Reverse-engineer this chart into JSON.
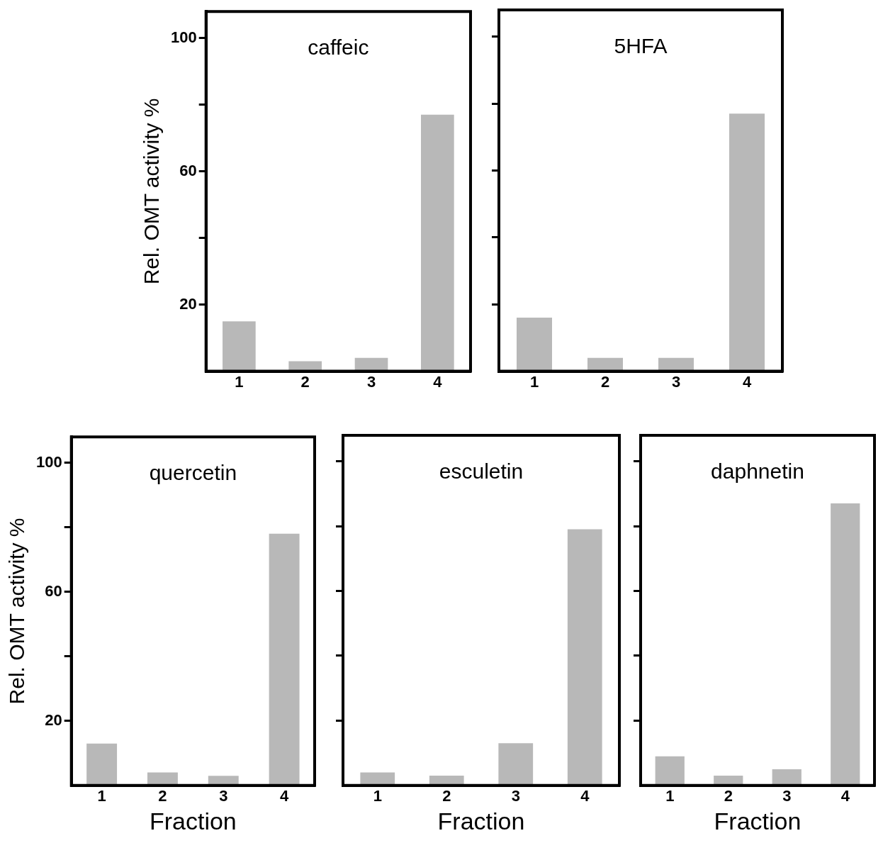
{
  "chart_data": [
    {
      "type": "bar",
      "title": "caffeic",
      "ylabel": "Rel. OMT activity %",
      "categories": [
        "1",
        "2",
        "3",
        "4"
      ],
      "values": [
        15,
        3,
        4,
        77
      ],
      "color": "#b8b8b8",
      "ylim": [
        0,
        108
      ],
      "yticks": [
        20,
        {
          "value": 40,
          "label": null
        },
        60,
        {
          "value": 80,
          "label": null
        },
        100
      ],
      "grid": false,
      "legend": false
    },
    {
      "type": "bar",
      "title": "5HFA",
      "categories": [
        "1",
        "2",
        "3",
        "4"
      ],
      "values": [
        16,
        4,
        4,
        77
      ],
      "color": "#b8b8b8",
      "ylim": [
        0,
        108
      ],
      "yticks": [
        {
          "value": 20,
          "label": null
        },
        {
          "value": 40,
          "label": null
        },
        {
          "value": 60,
          "label": null
        },
        {
          "value": 80,
          "label": null
        },
        {
          "value": 100,
          "label": null
        }
      ],
      "tick_labels": "x",
      "grid": false,
      "legend": false
    },
    {
      "type": "bar",
      "title": "quercetin",
      "xlabel": "Fraction",
      "ylabel": "Rel. OMT activity %",
      "categories": [
        "1",
        "2",
        "3",
        "4"
      ],
      "values": [
        13,
        4,
        3,
        78
      ],
      "color": "#b8b8b8",
      "ylim": [
        0,
        108
      ],
      "yticks": [
        20,
        {
          "value": 40,
          "label": null
        },
        60,
        {
          "value": 80,
          "label": null
        },
        100
      ],
      "grid": false,
      "legend": false
    },
    {
      "type": "bar",
      "title": "esculetin",
      "xlabel": "Fraction",
      "categories": [
        "1",
        "2",
        "3",
        "4"
      ],
      "values": [
        4,
        3,
        13,
        79
      ],
      "color": "#b8b8b8",
      "ylim": [
        0,
        108
      ],
      "yticks": [
        {
          "value": 20,
          "label": null
        },
        {
          "value": 40,
          "label": null
        },
        {
          "value": 60,
          "label": null
        },
        {
          "value": 80,
          "label": null
        },
        {
          "value": 100,
          "label": null
        }
      ],
      "tick_labels": "x",
      "grid": false,
      "legend": false
    },
    {
      "type": "bar",
      "title": "daphnetin",
      "xlabel": "Fraction",
      "categories": [
        "1",
        "2",
        "3",
        "4"
      ],
      "values": [
        9,
        3,
        5,
        87
      ],
      "color": "#b8b8b8",
      "ylim": [
        0,
        108
      ],
      "yticks": [
        {
          "value": 20,
          "label": null
        },
        {
          "value": 40,
          "label": null
        },
        {
          "value": 60,
          "label": null
        },
        {
          "value": 80,
          "label": null
        },
        {
          "value": 100,
          "label": null
        }
      ],
      "tick_labels": "x",
      "grid": false,
      "legend": false
    }
  ]
}
